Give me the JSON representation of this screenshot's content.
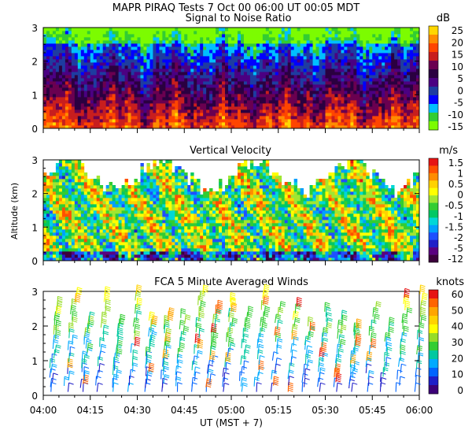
{
  "header": {
    "title": "MAPR PIRAQ Tests  7 Oct 00  06:00 UT  00:05  MDT"
  },
  "colors": {
    "snr_bins": [
      "#7cfc00",
      "#32cd32",
      "#00bfff",
      "#0000ff",
      "#1e3ca0",
      "#4b0082",
      "#2a0040",
      "#6a0050",
      "#c81e1e",
      "#ff4500",
      "#ff8c00",
      "#ffd700"
    ],
    "vel_bins": [
      "#3c003c",
      "#5a0080",
      "#2020c8",
      "#1e50ff",
      "#00a0ff",
      "#00d7d7",
      "#00c864",
      "#32cd32",
      "#a0e632",
      "#ffff00",
      "#ffd200",
      "#ff8c00",
      "#ff5000",
      "#e61414"
    ],
    "wind_bins": [
      "#3c0078",
      "#1e1ec8",
      "#0064ff",
      "#00aaff",
      "#00c8a0",
      "#32cd32",
      "#96dc28",
      "#ffff00",
      "#ffd200",
      "#ffa500",
      "#ff6400",
      "#e61414"
    ]
  },
  "chart_data": [
    {
      "name": "snr",
      "type": "heatmap",
      "title": "Signal to Noise Ratio",
      "unit": "dB",
      "ylim": [
        0,
        3
      ],
      "yticks": [
        "0",
        "1",
        "2",
        "3"
      ],
      "colorbar_labels": [
        "25",
        "20",
        "15",
        "10",
        "5",
        "0",
        "-5",
        "-10",
        "-15"
      ],
      "colorbar_range": [
        -17,
        28
      ]
    },
    {
      "name": "velocity",
      "type": "heatmap",
      "title": "Vertical Velocity",
      "unit": "m/s",
      "ylabel": "Altitude (km)",
      "ylim": [
        0,
        3
      ],
      "yticks": [
        "0",
        "1",
        "2",
        "3"
      ],
      "colorbar_labels": [
        "1.5",
        "1",
        "0.5",
        "0",
        "-0.5",
        "-1",
        "-1.5",
        "-2",
        "-5",
        "-12"
      ]
    },
    {
      "name": "winds",
      "type": "scatter",
      "title": "FCA 5 Minute Averaged Winds",
      "unit": "knots",
      "ylim": [
        0,
        3
      ],
      "yticks": [
        "0",
        "1",
        "2",
        "3"
      ],
      "colorbar_labels": [
        "60",
        "50",
        "40",
        "30",
        "20",
        "10",
        "0"
      ],
      "xlabel": "UT  (MST + 7)",
      "xticks": [
        "04:00",
        "04:15",
        "04:30",
        "04:45",
        "05:00",
        "05:15",
        "05:30",
        "05:45",
        "06:00"
      ],
      "xlim_minutes": [
        0,
        120
      ]
    }
  ]
}
